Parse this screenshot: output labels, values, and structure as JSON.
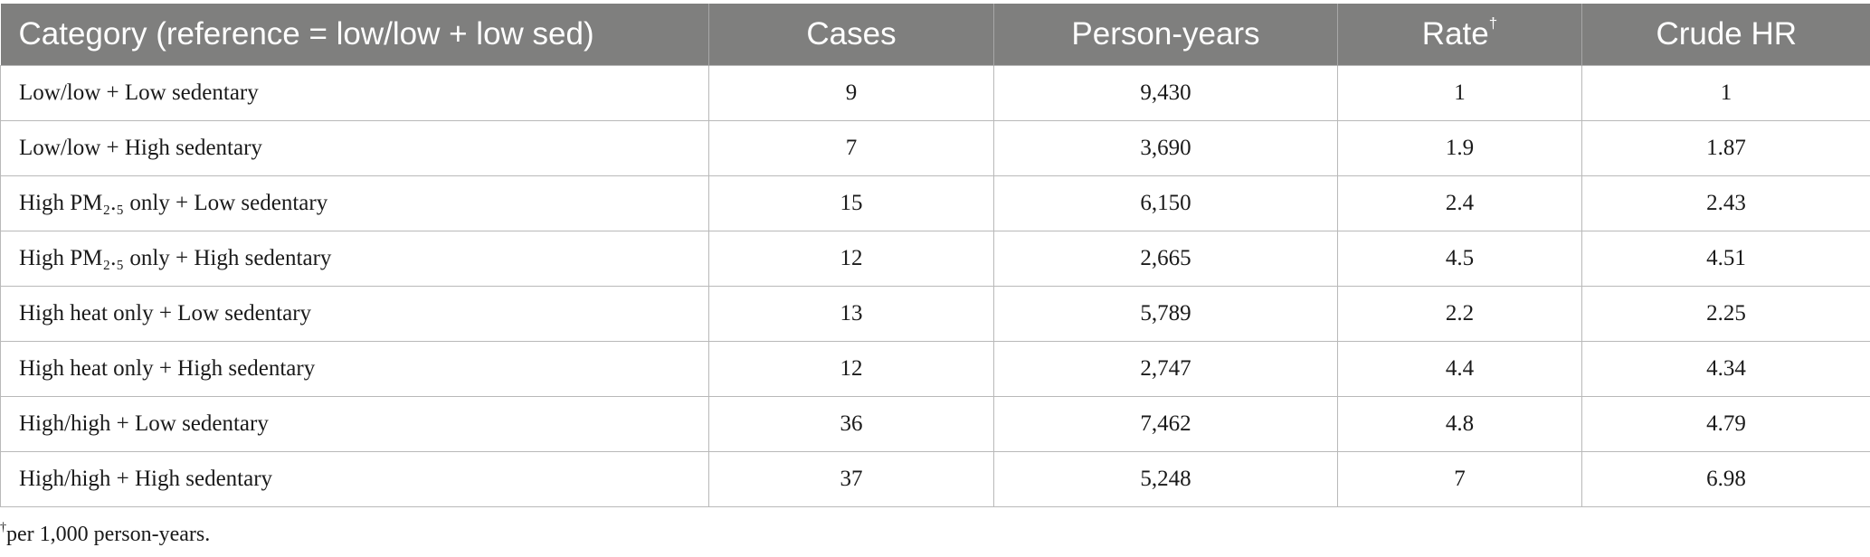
{
  "table": {
    "headers": [
      "Category (reference = low/low + low sed)",
      "Cases",
      "Person-years",
      "Rate",
      "Crude HR"
    ],
    "rate_marker": "†",
    "rows": [
      [
        "Low/low + Low sedentary",
        "9",
        "9,430",
        "1",
        "1"
      ],
      [
        "Low/low + High sedentary",
        "7",
        "3,690",
        "1.9",
        "1.87"
      ],
      [
        "High PM₂.₅ only + Low sedentary",
        "15",
        "6,150",
        "2.4",
        "2.43"
      ],
      [
        "High PM₂.₅ only + High sedentary",
        "12",
        "2,665",
        "4.5",
        "4.51"
      ],
      [
        "High heat only + Low sedentary",
        "13",
        "5,789",
        "2.2",
        "2.25"
      ],
      [
        "High heat only + High sedentary",
        "12",
        "2,747",
        "4.4",
        "4.34"
      ],
      [
        "High/high + Low sedentary",
        "36",
        "7,462",
        "4.8",
        "4.79"
      ],
      [
        "High/high + High sedentary",
        "37",
        "5,248",
        "7",
        "6.98"
      ]
    ]
  },
  "footnote": {
    "marker": "†",
    "text": "per 1,000 person-years."
  }
}
